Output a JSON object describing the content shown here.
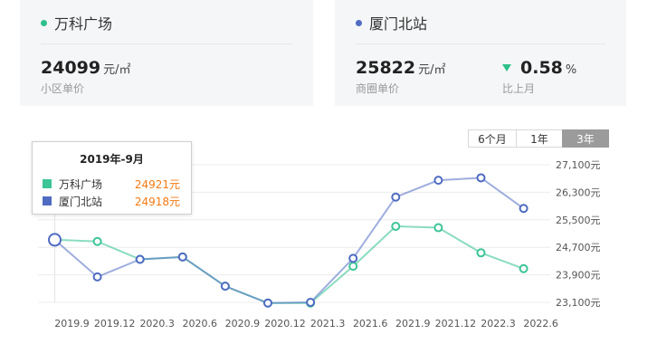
{
  "cards": [
    {
      "title": "万科广场",
      "dot_color": "#2ec08a",
      "price": "24099",
      "unit": "元/㎡",
      "price_label": "小区单价"
    },
    {
      "title": "厦门北站",
      "dot_color": "#4f6bc2",
      "price": "25822",
      "unit": "元/㎡",
      "price_label": "商圈单价",
      "change": "0.58",
      "change_unit": "%",
      "change_label": "比上月",
      "change_direction": "down",
      "change_color": "#2ec08a"
    }
  ],
  "range_tabs": [
    "6个月",
    "1年",
    "3年"
  ],
  "active_range": "3年",
  "tooltip": {
    "title": "2019年-9月",
    "rows": [
      {
        "name": "万科广场",
        "value": "24921元",
        "color": "#3cc596"
      },
      {
        "name": "厦门北站",
        "value": "24918元",
        "color": "#4f6bc2"
      }
    ]
  },
  "chart_data": {
    "type": "line",
    "x_tick_labels": [
      "2019.9",
      "2019.12",
      "2020.3",
      "2020.6",
      "2020.9",
      "2020.12",
      "2021.3",
      "2021.6",
      "2021.9",
      "2021.12",
      "2022.3",
      "2022.6"
    ],
    "y_tick_labels": [
      "27,100元",
      "26,300元",
      "25,500元",
      "24,700元",
      "23,900元",
      "23,100元"
    ],
    "ylim": [
      23100,
      27100
    ],
    "y_ticks": [
      27100,
      26300,
      25500,
      24700,
      23900,
      23100
    ],
    "grid": true,
    "highlight_index": 0,
    "series": [
      {
        "name": "万科广场",
        "color": "#3cc596",
        "values": [
          24921,
          24870,
          24350,
          24420,
          23570,
          23080,
          23080,
          24150,
          25310,
          25270,
          24540,
          24080
        ]
      },
      {
        "name": "厦门北站",
        "color": "#4f6bc2",
        "values": [
          24918,
          23840,
          24350,
          24420,
          23570,
          23080,
          23100,
          24380,
          26160,
          26650,
          26720,
          25830
        ]
      }
    ]
  }
}
